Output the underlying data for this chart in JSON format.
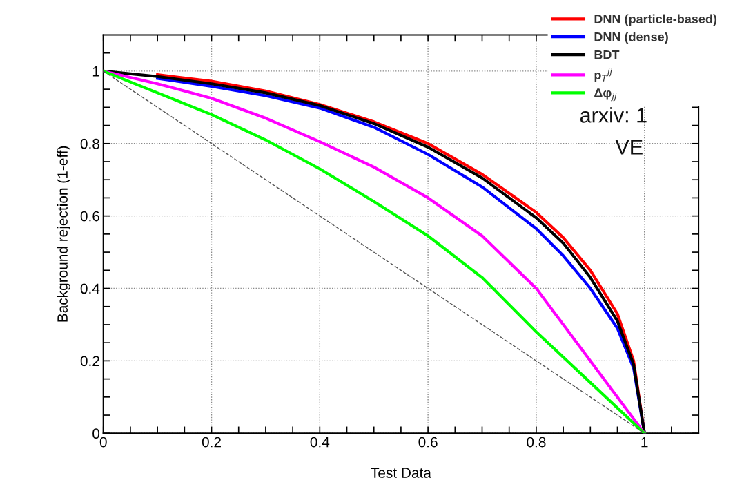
{
  "chart_data": {
    "type": "line",
    "xlabel": "Test Data",
    "ylabel": "Background rejection (1-eff)",
    "x": [
      0,
      0.1,
      0.2,
      0.3,
      0.4,
      0.5,
      0.6,
      0.7,
      0.8,
      0.85,
      0.9,
      0.95,
      0.98,
      1.0
    ],
    "series": [
      {
        "name": "DNN (particle-based)",
        "color": "#ff0000",
        "values": [
          null,
          0.99,
          0.972,
          0.945,
          0.908,
          0.86,
          0.8,
          0.715,
          0.61,
          0.54,
          0.45,
          0.33,
          0.2,
          0
        ]
      },
      {
        "name": "DNN (dense)",
        "color": "#0000ff",
        "values": [
          null,
          0.98,
          0.958,
          0.932,
          0.898,
          0.845,
          0.77,
          0.68,
          0.565,
          0.49,
          0.4,
          0.29,
          0.18,
          0
        ]
      },
      {
        "name": "BDT",
        "color": "#000000",
        "values": [
          1,
          0.985,
          0.965,
          0.94,
          0.905,
          0.855,
          0.79,
          0.705,
          0.595,
          0.525,
          0.43,
          0.31,
          0.19,
          0
        ]
      },
      {
        "name": "p$_{T}$$^{jj}$",
        "color": "#ff00ff",
        "x": [
          0,
          0.1,
          0.2,
          0.3,
          0.4,
          0.5,
          0.6,
          0.7,
          0.8,
          0.9,
          1.0
        ],
        "values": [
          1,
          0.965,
          0.925,
          0.87,
          0.805,
          0.735,
          0.65,
          0.545,
          0.4,
          0.2,
          0
        ]
      },
      {
        "name": "Δφ$_{jj}$",
        "color": "#00ff00",
        "x": [
          0,
          0.1,
          0.2,
          0.3,
          0.4,
          0.5,
          0.6,
          0.7,
          0.8,
          0.9,
          1.0
        ],
        "values": [
          1,
          0.94,
          0.88,
          0.81,
          0.73,
          0.64,
          0.545,
          0.43,
          0.28,
          0.14,
          0
        ]
      },
      {
        "color": "#555555",
        "line_style": "dashed",
        "x": [
          0,
          1
        ],
        "values": [
          1,
          0
        ]
      }
    ],
    "xlim": [
      0,
      1.1
    ],
    "ylim": [
      0,
      1.1
    ],
    "xticks": [
      0,
      {
        "value": 0.05,
        "label": null
      },
      {
        "value": 0.1,
        "label": null
      },
      {
        "value": 0.15,
        "label": null
      },
      0.2,
      {
        "value": 0.25,
        "label": null
      },
      {
        "value": 0.3,
        "label": null
      },
      {
        "value": 0.35,
        "label": null
      },
      0.4,
      {
        "value": 0.45,
        "label": null
      },
      {
        "value": 0.5,
        "label": null
      },
      {
        "value": 0.55,
        "label": null
      },
      0.6,
      {
        "value": 0.65,
        "label": null
      },
      {
        "value": 0.7,
        "label": null
      },
      {
        "value": 0.75,
        "label": null
      },
      0.8,
      {
        "value": 0.85,
        "label": null
      },
      {
        "value": 0.9,
        "label": null
      },
      {
        "value": 0.95,
        "label": null
      },
      1,
      {
        "value": 1.05,
        "label": null
      }
    ],
    "yticks": [
      0,
      {
        "value": 0.05,
        "label": null
      },
      {
        "value": 0.1,
        "label": null
      },
      {
        "value": 0.15,
        "label": null
      },
      0.2,
      {
        "value": 0.25,
        "label": null
      },
      {
        "value": 0.3,
        "label": null
      },
      {
        "value": 0.35,
        "label": null
      },
      0.4,
      {
        "value": 0.45,
        "label": null
      },
      {
        "value": 0.5,
        "label": null
      },
      {
        "value": 0.55,
        "label": null
      },
      0.6,
      {
        "value": 0.65,
        "label": null
      },
      {
        "value": 0.7,
        "label": null
      },
      {
        "value": 0.75,
        "label": null
      },
      0.8,
      {
        "value": 0.85,
        "label": null
      },
      {
        "value": 0.9,
        "label": null
      },
      {
        "value": 0.95,
        "label": null
      },
      1,
      {
        "value": 1.05,
        "label": null
      }
    ],
    "grid": true,
    "legend": "top right",
    "line_style": "solid",
    "marker": "none",
    "annotations": [
      "arxiv: 1",
      "VE"
    ]
  }
}
